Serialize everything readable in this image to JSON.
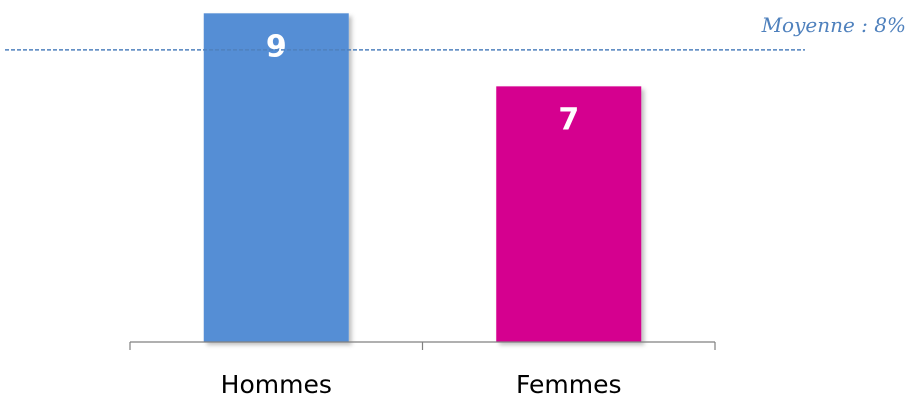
{
  "chart_data": {
    "type": "bar",
    "categories": [
      "Hommes",
      "Femmes"
    ],
    "values": [
      9,
      7
    ],
    "data_labels": [
      "9",
      "7"
    ],
    "bar_colors": [
      "#558ed5",
      "#d5008f"
    ],
    "ylim": [
      0,
      9.2
    ],
    "reference_line": {
      "value": 8,
      "label": "Moyenne : 8%",
      "color": "#4f81bd",
      "style": "dashed"
    },
    "title": "",
    "xlabel": "",
    "ylabel": "",
    "grid": false,
    "legend": "none"
  }
}
